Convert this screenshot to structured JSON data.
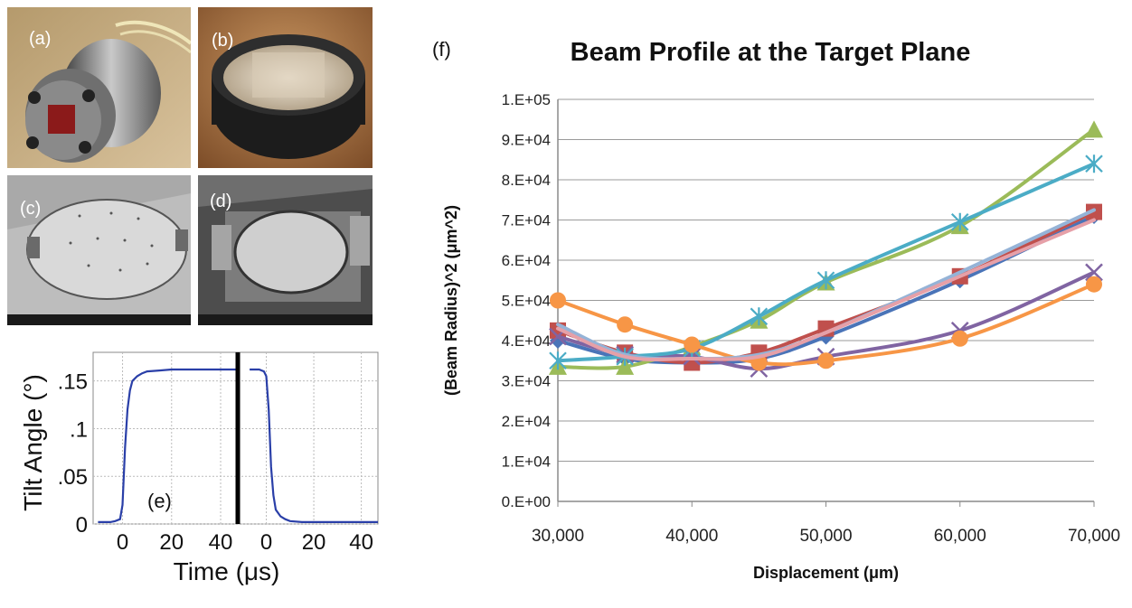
{
  "panels": {
    "a": "(a)",
    "b": "(b)",
    "c": "(c)",
    "d": "(d)",
    "e": "(e)",
    "f": "(f)"
  },
  "chart_data": [
    {
      "type": "line",
      "panel": "(e)",
      "title": "",
      "xlabel": "Time (μs)",
      "ylabel": "Tilt Angle (°)",
      "x_ticks_left": [
        "0",
        "20",
        "40"
      ],
      "x_ticks_right": [
        "0",
        "20",
        "40"
      ],
      "y_ticks": [
        "0",
        ".05",
        ".1",
        ".15"
      ],
      "ylim": [
        0,
        0.18
      ],
      "grid": true,
      "colors": {
        "trace": "#2a3fa8",
        "divider": "#000000"
      },
      "series": [
        {
          "segment": "rise",
          "x": [
            -10,
            -5,
            -3,
            -1,
            0,
            1,
            2,
            3,
            4,
            6,
            8,
            10,
            15,
            20,
            30,
            40,
            47
          ],
          "y": [
            0.002,
            0.002,
            0.003,
            0.005,
            0.02,
            0.08,
            0.12,
            0.14,
            0.15,
            0.155,
            0.158,
            0.16,
            0.161,
            0.162,
            0.162,
            0.162,
            0.162
          ]
        },
        {
          "segment": "fall",
          "x": [
            -7,
            -3,
            -1,
            0,
            1,
            2,
            3,
            4,
            6,
            8,
            10,
            15,
            20,
            30,
            40,
            47
          ],
          "y": [
            0.162,
            0.162,
            0.16,
            0.155,
            0.12,
            0.06,
            0.03,
            0.015,
            0.008,
            0.005,
            0.003,
            0.002,
            0.002,
            0.002,
            0.002,
            0.002
          ]
        }
      ]
    },
    {
      "type": "line",
      "panel": "(f)",
      "title": "Beam Profile at the Target Plane",
      "xlabel": "Displacement (μm)",
      "ylabel": "(Beam Radius)^2 (μm^2)",
      "x": [
        30000,
        35000,
        40000,
        45000,
        50000,
        60000,
        70000
      ],
      "x_tick_labels": [
        "30,000",
        "40,000",
        "50,000",
        "60,000",
        "70,000"
      ],
      "x_tick_values": [
        30000,
        40000,
        50000,
        60000,
        70000
      ],
      "y_tick_labels": [
        "0.E+00",
        "1.E+04",
        "2.E+04",
        "3.E+04",
        "4.E+04",
        "5.E+04",
        "6.E+04",
        "7.E+04",
        "8.E+04",
        "9.E+04",
        "1.E+05"
      ],
      "ylim": [
        0,
        100000
      ],
      "xlim": [
        30000,
        70000
      ],
      "grid": true,
      "series": [
        {
          "color": "#4a74b8",
          "marker": "diamond",
          "values": [
            40000,
            35500,
            34500,
            35500,
            41000,
            55000,
            71000
          ]
        },
        {
          "color": "#c0504d",
          "marker": "square",
          "values": [
            42500,
            37000,
            34500,
            37000,
            43000,
            56000,
            72000
          ]
        },
        {
          "color": "#9bbb59",
          "marker": "triangle",
          "values": [
            33500,
            33500,
            38500,
            45000,
            54500,
            68500,
            92500
          ]
        },
        {
          "color": "#8064a2",
          "marker": "x",
          "values": [
            41000,
            36500,
            36000,
            33000,
            36000,
            42500,
            57000
          ]
        },
        {
          "color": "#4bacc6",
          "marker": "asterisk",
          "values": [
            35000,
            36000,
            38000,
            46000,
            55000,
            69500,
            84000
          ]
        },
        {
          "color": "#f79646",
          "marker": "circle",
          "values": [
            50000,
            44000,
            39000,
            34500,
            35000,
            40500,
            54000
          ]
        },
        {
          "color": "#95b3d7",
          "marker": "none",
          "values": [
            44000,
            36500,
            35500,
            36500,
            42000,
            57000,
            72500
          ]
        },
        {
          "color": "#e6a0a8",
          "marker": "none",
          "values": [
            43000,
            36000,
            35500,
            36000,
            42000,
            56000,
            70000
          ]
        }
      ]
    }
  ]
}
